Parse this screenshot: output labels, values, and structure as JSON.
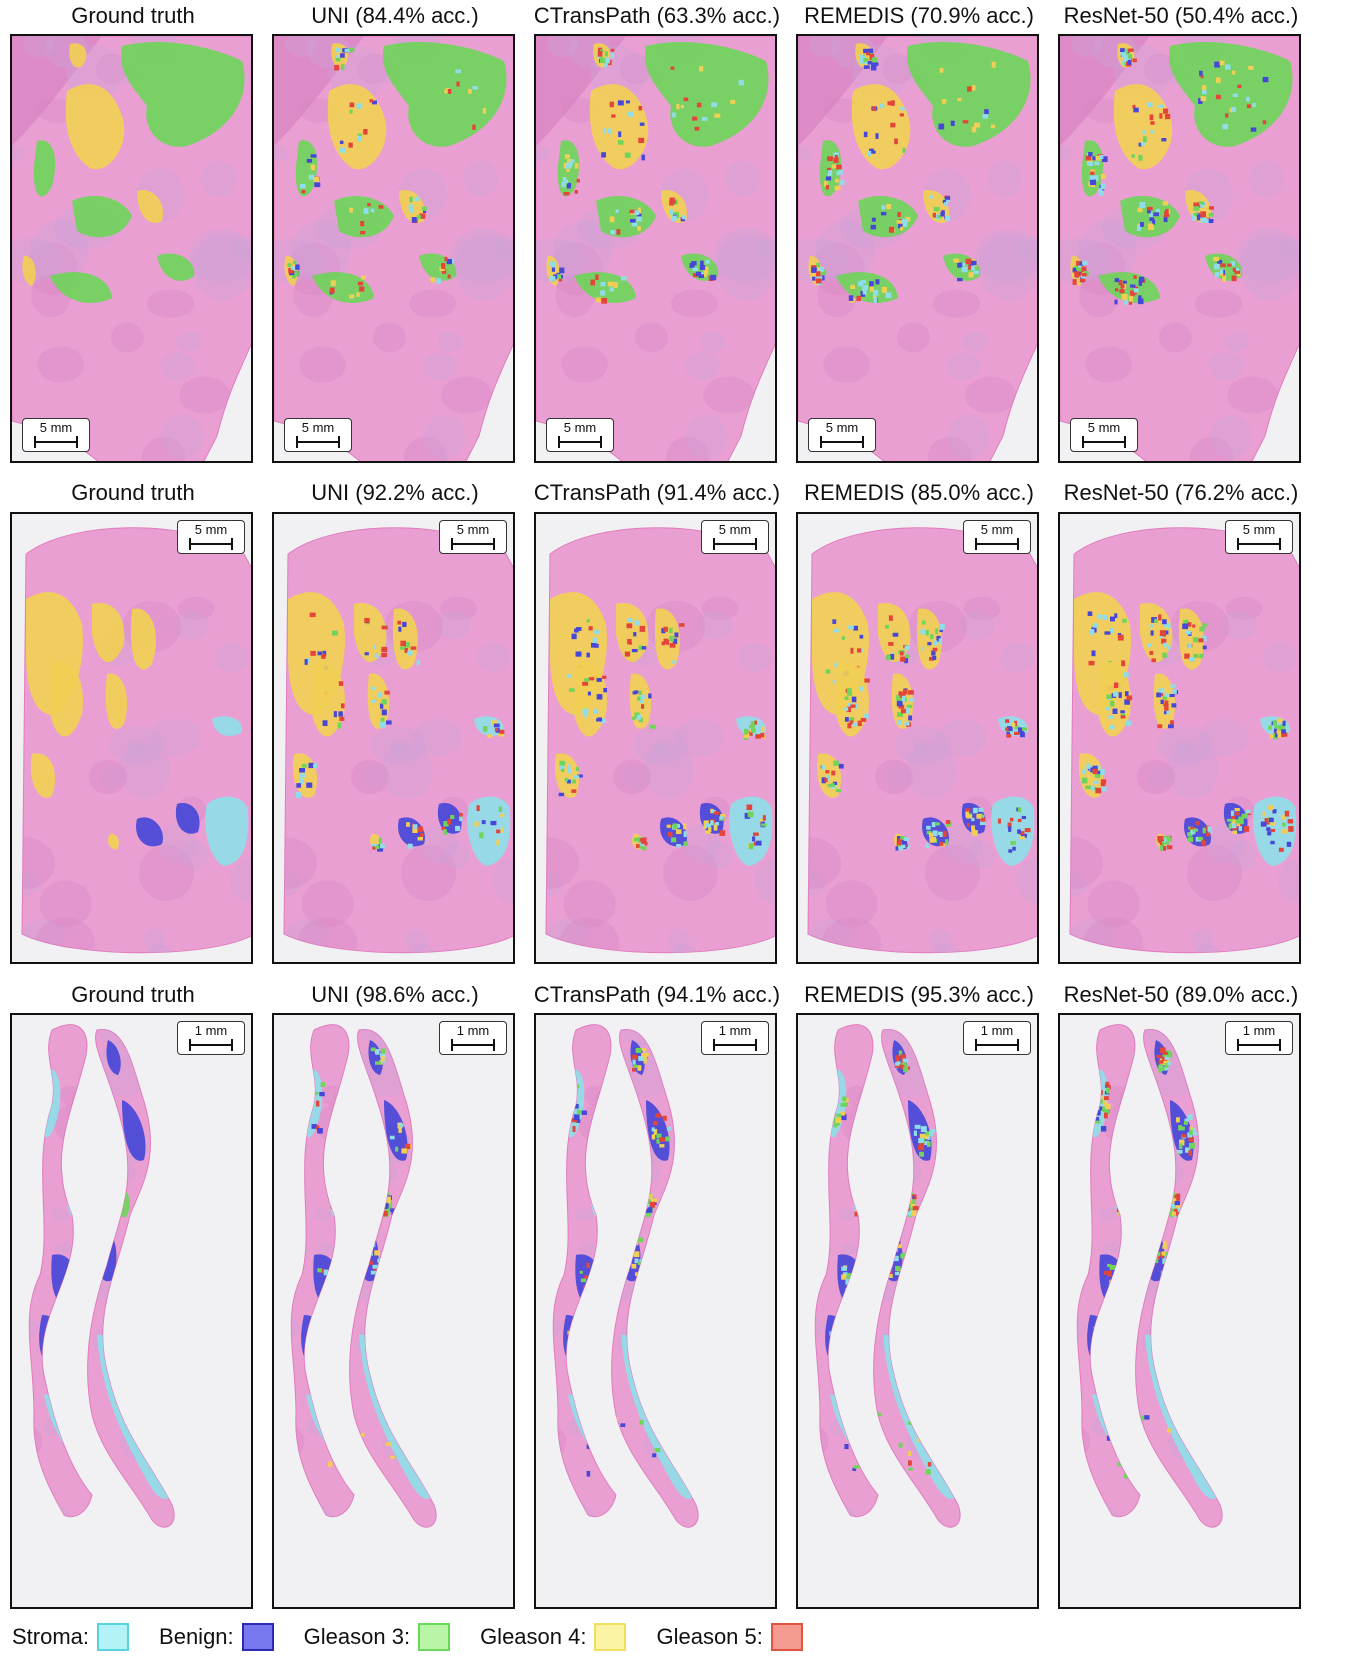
{
  "rows": [
    {
      "panels": [
        {
          "title": "Ground truth",
          "scale": "5 mm",
          "variant": 0
        },
        {
          "title": "UNI (84.4% acc.)",
          "scale": "5 mm",
          "variant": 1
        },
        {
          "title": "CTransPath (63.3% acc.)",
          "scale": "5 mm",
          "variant": 2
        },
        {
          "title": "REMEDIS (70.9% acc.)",
          "scale": "5 mm",
          "variant": 3
        },
        {
          "title": "ResNet-50 (50.4% acc.)",
          "scale": "5 mm",
          "variant": 4
        }
      ]
    },
    {
      "panels": [
        {
          "title": "Ground truth",
          "scale": "5 mm",
          "variant": 0
        },
        {
          "title": "UNI (92.2% acc.)",
          "scale": "5 mm",
          "variant": 1
        },
        {
          "title": "CTransPath (91.4% acc.)",
          "scale": "5 mm",
          "variant": 2
        },
        {
          "title": "REMEDIS (85.0% acc.)",
          "scale": "5 mm",
          "variant": 3
        },
        {
          "title": "ResNet-50 (76.2% acc.)",
          "scale": "5 mm",
          "variant": 4
        }
      ]
    },
    {
      "panels": [
        {
          "title": "Ground truth",
          "scale": "1 mm",
          "variant": 0
        },
        {
          "title": "UNI (98.6% acc.)",
          "scale": "1 mm",
          "variant": 1
        },
        {
          "title": "CTransPath (94.1% acc.)",
          "scale": "1 mm",
          "variant": 2
        },
        {
          "title": "REMEDIS (95.3% acc.)",
          "scale": "1 mm",
          "variant": 3
        },
        {
          "title": "ResNet-50 (89.0% acc.)",
          "scale": "1 mm",
          "variant": 4
        }
      ]
    }
  ],
  "legend": [
    {
      "label": "Stroma:",
      "fill": "#b3f3f7",
      "stroke": "#57d3e0"
    },
    {
      "label": "Benign:",
      "fill": "#7a78ef",
      "stroke": "#2b2bb8"
    },
    {
      "label": "Gleason 3:",
      "fill": "#b8f5a6",
      "stroke": "#6ad85a"
    },
    {
      "label": "Gleason 4:",
      "fill": "#fbf4a4",
      "stroke": "#f1e05f"
    },
    {
      "label": "Gleason 5:",
      "fill": "#f59a90",
      "stroke": "#e0553f"
    }
  ],
  "colors": {
    "tissue_light": "#ea9fd3",
    "tissue_dark": "#d886c4",
    "tissue_purple": "#cba4d8",
    "background": "#f1f0f3",
    "stroma": "#8fdde8",
    "benign": "#4646d8",
    "gleason3": "#6fd45a",
    "gleason4": "#f1cf55",
    "gleason5": "#e4453a"
  }
}
